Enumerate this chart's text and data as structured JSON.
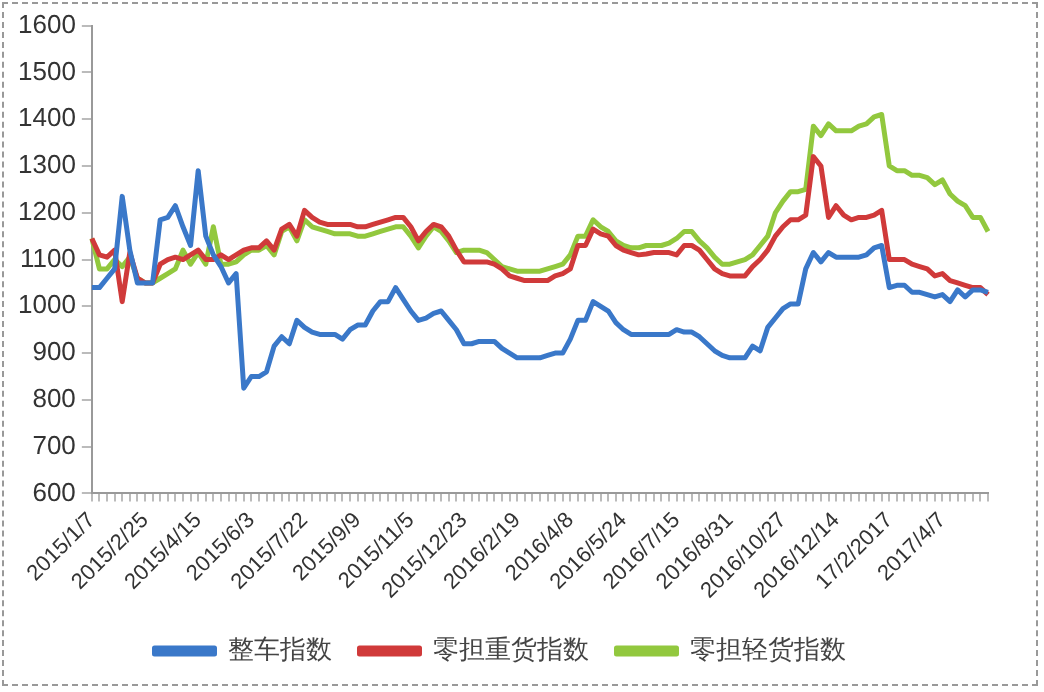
{
  "chart_data": {
    "type": "line",
    "categories": [
      "2015/1/7",
      null,
      null,
      null,
      null,
      null,
      null,
      "2015/2/25",
      null,
      null,
      null,
      null,
      null,
      null,
      "2015/4/15",
      null,
      null,
      null,
      null,
      null,
      null,
      "2015/6/3",
      null,
      null,
      null,
      null,
      null,
      null,
      "2015/7/22",
      null,
      null,
      null,
      null,
      null,
      null,
      "2015/9/9",
      null,
      null,
      null,
      null,
      null,
      null,
      "2015/11/5",
      null,
      null,
      null,
      null,
      null,
      null,
      "2015/12/23",
      null,
      null,
      null,
      null,
      null,
      null,
      "2016/2/19",
      null,
      null,
      null,
      null,
      null,
      null,
      "2016/4/8",
      null,
      null,
      null,
      null,
      null,
      null,
      "2016/5/24",
      null,
      null,
      null,
      null,
      null,
      null,
      "2016/7/15",
      null,
      null,
      null,
      null,
      null,
      null,
      "2016/8/31",
      null,
      null,
      null,
      null,
      null,
      null,
      "2016/10/27",
      null,
      null,
      null,
      null,
      null,
      null,
      "2016/12/14",
      null,
      null,
      null,
      null,
      null,
      null,
      "17/2/2017",
      null,
      null,
      null,
      null,
      null,
      null,
      "2017/4/7",
      null,
      null,
      null,
      null,
      null,
      null
    ],
    "series": [
      {
        "name": "整车指数",
        "color": "#3a78c9",
        "values": [
          1040,
          1040,
          1060,
          1080,
          1235,
          1120,
          1050,
          1050,
          1050,
          1185,
          1190,
          1215,
          1170,
          1130,
          1290,
          1150,
          1110,
          1085,
          1050,
          1070,
          825,
          850,
          850,
          860,
          915,
          935,
          920,
          970,
          955,
          945,
          940,
          940,
          940,
          930,
          950,
          960,
          960,
          990,
          1010,
          1010,
          1040,
          1015,
          990,
          970,
          975,
          985,
          990,
          970,
          950,
          920,
          920,
          925,
          925,
          925,
          910,
          900,
          890,
          890,
          890,
          890,
          895,
          900,
          900,
          930,
          970,
          970,
          1010,
          1000,
          990,
          965,
          950,
          940,
          940,
          940,
          940,
          940,
          940,
          950,
          945,
          945,
          935,
          920,
          905,
          895,
          890,
          890,
          890,
          915,
          905,
          955,
          975,
          995,
          1005,
          1005,
          1080,
          1115,
          1095,
          1115,
          1105,
          1105,
          1105,
          1105,
          1110,
          1125,
          1130,
          1040,
          1045,
          1045,
          1030,
          1030,
          1025,
          1020,
          1025,
          1010,
          1035,
          1020,
          1035,
          1035,
          1030
        ]
      },
      {
        "name": "零担重货指数",
        "color": "#d03a3a",
        "values": [
          1145,
          1110,
          1105,
          1120,
          1010,
          1115,
          1060,
          1050,
          1050,
          1090,
          1100,
          1105,
          1100,
          1110,
          1120,
          1100,
          1100,
          1110,
          1100,
          1110,
          1120,
          1125,
          1125,
          1140,
          1120,
          1165,
          1175,
          1150,
          1205,
          1190,
          1180,
          1175,
          1175,
          1175,
          1175,
          1170,
          1170,
          1175,
          1180,
          1185,
          1190,
          1190,
          1170,
          1140,
          1160,
          1175,
          1170,
          1150,
          1120,
          1095,
          1095,
          1095,
          1095,
          1090,
          1080,
          1065,
          1060,
          1055,
          1055,
          1055,
          1055,
          1065,
          1070,
          1080,
          1130,
          1130,
          1165,
          1155,
          1150,
          1130,
          1120,
          1115,
          1110,
          1112,
          1115,
          1115,
          1115,
          1110,
          1130,
          1130,
          1120,
          1100,
          1080,
          1070,
          1065,
          1065,
          1065,
          1085,
          1100,
          1120,
          1150,
          1170,
          1185,
          1185,
          1195,
          1320,
          1300,
          1190,
          1215,
          1195,
          1185,
          1190,
          1190,
          1195,
          1205,
          1100,
          1100,
          1100,
          1090,
          1085,
          1080,
          1065,
          1070,
          1055,
          1050,
          1045,
          1040,
          1040,
          1025
        ]
      },
      {
        "name": "零担轻货指数",
        "color": "#92c83e",
        "values": [
          1145,
          1080,
          1080,
          1100,
          1085,
          1105,
          1060,
          1050,
          1050,
          1060,
          1070,
          1080,
          1120,
          1090,
          1115,
          1090,
          1170,
          1090,
          1090,
          1095,
          1110,
          1120,
          1120,
          1130,
          1110,
          1160,
          1170,
          1140,
          1185,
          1170,
          1165,
          1160,
          1155,
          1155,
          1155,
          1150,
          1150,
          1155,
          1160,
          1165,
          1170,
          1170,
          1150,
          1125,
          1150,
          1170,
          1160,
          1140,
          1115,
          1120,
          1120,
          1120,
          1115,
          1100,
          1085,
          1080,
          1075,
          1075,
          1075,
          1075,
          1080,
          1085,
          1090,
          1110,
          1150,
          1150,
          1185,
          1170,
          1160,
          1140,
          1130,
          1125,
          1125,
          1130,
          1130,
          1130,
          1135,
          1145,
          1160,
          1160,
          1140,
          1125,
          1105,
          1090,
          1090,
          1095,
          1100,
          1110,
          1130,
          1150,
          1200,
          1225,
          1245,
          1245,
          1250,
          1385,
          1365,
          1390,
          1375,
          1375,
          1375,
          1385,
          1390,
          1405,
          1410,
          1300,
          1290,
          1290,
          1280,
          1280,
          1275,
          1260,
          1270,
          1240,
          1225,
          1215,
          1190,
          1190,
          1160
        ]
      }
    ],
    "ylim": [
      600,
      1600
    ],
    "yticks": [
      600,
      700,
      800,
      900,
      1000,
      1100,
      1200,
      1300,
      1400,
      1500,
      1600
    ],
    "grid": false,
    "legend": "bottom",
    "marker": "none",
    "line_style": "solid"
  }
}
